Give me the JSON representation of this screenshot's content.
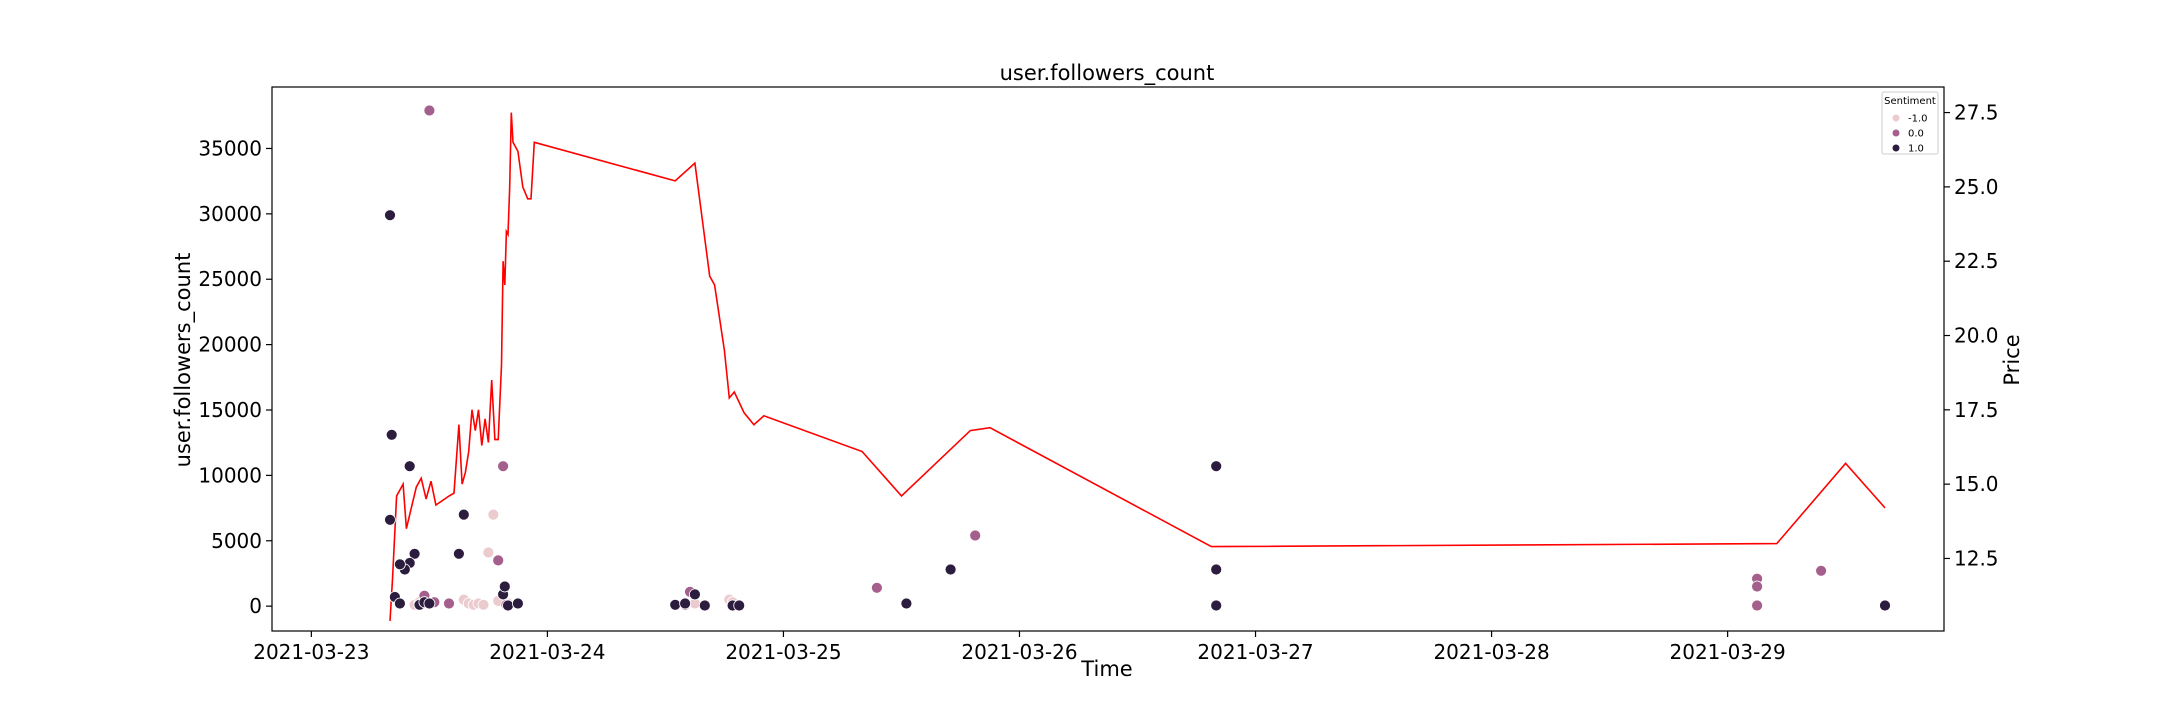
{
  "chart_data": {
    "type": "scatter",
    "title": "user.followers_count",
    "xlabel": "Time",
    "ylabel": "user.followers_count",
    "y2label": "Price",
    "xlim": [
      "2021-03-22T20:00",
      "2021-03-29T22:00"
    ],
    "ylim": [
      -1900,
      39700
    ],
    "y2lim": [
      10.06,
      28.36
    ],
    "x_ticks": [
      "2021-03-23",
      "2021-03-24",
      "2021-03-25",
      "2021-03-26",
      "2021-03-27",
      "2021-03-28",
      "2021-03-29"
    ],
    "y_ticks": [
      0,
      5000,
      10000,
      15000,
      20000,
      25000,
      30000,
      35000
    ],
    "y2_ticks": [
      "12.5",
      "15.0",
      "17.5",
      "20.0",
      "22.5",
      "25.0",
      "27.5"
    ],
    "grid": false,
    "legend": {
      "title": "Sentiment",
      "placement": "top-right",
      "entries": [
        {
          "label": "-1.0",
          "color": "#eccbcf"
        },
        {
          "label": "0.0",
          "color": "#a45f8c"
        },
        {
          "label": "1.0",
          "color": "#2c1d3f"
        }
      ]
    },
    "scatter_series": [
      {
        "name": "-1.0",
        "color": "#eccbcf",
        "points": [
          [
            "2021-03-23T10:30",
            100
          ],
          [
            "2021-03-23T11:00",
            300
          ],
          [
            "2021-03-23T15:00",
            4000
          ],
          [
            "2021-03-23T15:30",
            500
          ],
          [
            "2021-03-23T16:00",
            200
          ],
          [
            "2021-03-23T16:30",
            100
          ],
          [
            "2021-03-23T17:00",
            200
          ],
          [
            "2021-03-23T17:30",
            100
          ],
          [
            "2021-03-23T18:00",
            4100
          ],
          [
            "2021-03-23T18:30",
            7000
          ],
          [
            "2021-03-23T19:00",
            400
          ],
          [
            "2021-03-23T20:00",
            200
          ],
          [
            "2021-03-24T15:00",
            200
          ],
          [
            "2021-03-24T18:30",
            500
          ],
          [
            "2021-03-24T18:50",
            300
          ]
        ]
      },
      {
        "name": "0.0",
        "color": "#a45f8c",
        "points": [
          [
            "2021-03-23T12:00",
            37900
          ],
          [
            "2021-03-23T11:30",
            800
          ],
          [
            "2021-03-23T12:30",
            300
          ],
          [
            "2021-03-23T19:00",
            3500
          ],
          [
            "2021-03-23T19:30",
            10700
          ],
          [
            "2021-03-23T14:00",
            200
          ],
          [
            "2021-03-23T19:50",
            100
          ],
          [
            "2021-03-24T14:00",
            100
          ],
          [
            "2021-03-24T14:30",
            1100
          ],
          [
            "2021-03-25T09:30",
            1400
          ],
          [
            "2021-03-25T19:30",
            5400
          ],
          [
            "2021-03-29T03:00",
            2100
          ],
          [
            "2021-03-29T03:00",
            1500
          ],
          [
            "2021-03-29T03:00",
            50
          ],
          [
            "2021-03-29T09:30",
            2700
          ]
        ]
      },
      {
        "name": "1.0",
        "color": "#2c1d3f",
        "points": [
          [
            "2021-03-23T08:00",
            29900
          ],
          [
            "2021-03-23T08:10",
            13100
          ],
          [
            "2021-03-23T08:00",
            6600
          ],
          [
            "2021-03-23T10:00",
            10700
          ],
          [
            "2021-03-23T10:30",
            4000
          ],
          [
            "2021-03-23T10:00",
            3300
          ],
          [
            "2021-03-23T09:30",
            2800
          ],
          [
            "2021-03-23T09:00",
            3200
          ],
          [
            "2021-03-23T08:30",
            700
          ],
          [
            "2021-03-23T09:00",
            200
          ],
          [
            "2021-03-23T11:00",
            100
          ],
          [
            "2021-03-23T11:30",
            300
          ],
          [
            "2021-03-23T12:00",
            200
          ],
          [
            "2021-03-23T15:00",
            4000
          ],
          [
            "2021-03-23T15:30",
            7000
          ],
          [
            "2021-03-23T19:30",
            900
          ],
          [
            "2021-03-23T19:40",
            1500
          ],
          [
            "2021-03-23T20:00",
            50
          ],
          [
            "2021-03-23T21:00",
            200
          ],
          [
            "2021-03-24T13:00",
            100
          ],
          [
            "2021-03-24T14:00",
            200
          ],
          [
            "2021-03-24T15:00",
            900
          ],
          [
            "2021-03-24T16:00",
            50
          ],
          [
            "2021-03-24T18:50",
            50
          ],
          [
            "2021-03-24T19:30",
            50
          ],
          [
            "2021-03-25T12:30",
            200
          ],
          [
            "2021-03-25T17:00",
            2800
          ],
          [
            "2021-03-26T20:00",
            10700
          ],
          [
            "2021-03-26T20:00",
            2800
          ],
          [
            "2021-03-26T20:00",
            50
          ],
          [
            "2021-03-29T16:00",
            50
          ]
        ]
      }
    ],
    "line_series": {
      "name": "Price",
      "color": "#ff0000",
      "axis": "right",
      "points": [
        [
          "2021-03-23T08:00",
          10.4
        ],
        [
          "2021-03-23T08:15",
          11.8
        ],
        [
          "2021-03-23T08:40",
          14.6
        ],
        [
          "2021-03-23T09:20",
          15.0
        ],
        [
          "2021-03-23T09:40",
          13.5
        ],
        [
          "2021-03-23T10:10",
          14.2
        ],
        [
          "2021-03-23T10:40",
          14.9
        ],
        [
          "2021-03-23T11:10",
          15.2
        ],
        [
          "2021-03-23T11:40",
          14.5
        ],
        [
          "2021-03-23T12:10",
          15.1
        ],
        [
          "2021-03-23T12:40",
          14.3
        ],
        [
          "2021-03-23T14:00",
          14.6
        ],
        [
          "2021-03-23T14:30",
          14.7
        ],
        [
          "2021-03-23T15:00",
          17.0
        ],
        [
          "2021-03-23T15:20",
          15.0
        ],
        [
          "2021-03-23T15:40",
          15.4
        ],
        [
          "2021-03-23T16:00",
          16.1
        ],
        [
          "2021-03-23T16:20",
          17.5
        ],
        [
          "2021-03-23T16:40",
          16.8
        ],
        [
          "2021-03-23T17:00",
          17.5
        ],
        [
          "2021-03-23T17:20",
          16.3
        ],
        [
          "2021-03-23T17:40",
          17.2
        ],
        [
          "2021-03-23T18:00",
          16.4
        ],
        [
          "2021-03-23T18:20",
          18.5
        ],
        [
          "2021-03-23T18:40",
          16.5
        ],
        [
          "2021-03-23T19:00",
          16.5
        ],
        [
          "2021-03-23T19:20",
          19.0
        ],
        [
          "2021-03-23T19:30",
          22.5
        ],
        [
          "2021-03-23T19:40",
          21.7
        ],
        [
          "2021-03-23T19:50",
          23.5
        ],
        [
          "2021-03-23T20:00",
          23.4
        ],
        [
          "2021-03-23T20:10",
          25.0
        ],
        [
          "2021-03-23T20:20",
          27.5
        ],
        [
          "2021-03-23T20:30",
          26.5
        ],
        [
          "2021-03-23T21:00",
          26.2
        ],
        [
          "2021-03-23T21:30",
          25.0
        ],
        [
          "2021-03-23T22:00",
          24.6
        ],
        [
          "2021-03-23T22:20",
          24.6
        ],
        [
          "2021-03-23T22:40",
          26.5
        ],
        [
          "2021-03-24T13:00",
          25.2
        ],
        [
          "2021-03-24T15:00",
          25.8
        ],
        [
          "2021-03-24T16:30",
          22.0
        ],
        [
          "2021-03-24T17:00",
          21.7
        ],
        [
          "2021-03-24T18:00",
          19.5
        ],
        [
          "2021-03-24T18:30",
          17.9
        ],
        [
          "2021-03-24T19:00",
          18.1
        ],
        [
          "2021-03-24T20:00",
          17.4
        ],
        [
          "2021-03-24T21:00",
          17.0
        ],
        [
          "2021-03-24T22:00",
          17.3
        ],
        [
          "2021-03-25T08:00",
          16.1
        ],
        [
          "2021-03-25T12:00",
          14.6
        ],
        [
          "2021-03-25T19:00",
          16.8
        ],
        [
          "2021-03-25T21:00",
          16.9
        ],
        [
          "2021-03-26T19:30",
          12.9
        ],
        [
          "2021-03-29T05:00",
          13.0
        ],
        [
          "2021-03-29T12:00",
          15.7
        ],
        [
          "2021-03-29T16:00",
          14.2
        ]
      ]
    }
  }
}
